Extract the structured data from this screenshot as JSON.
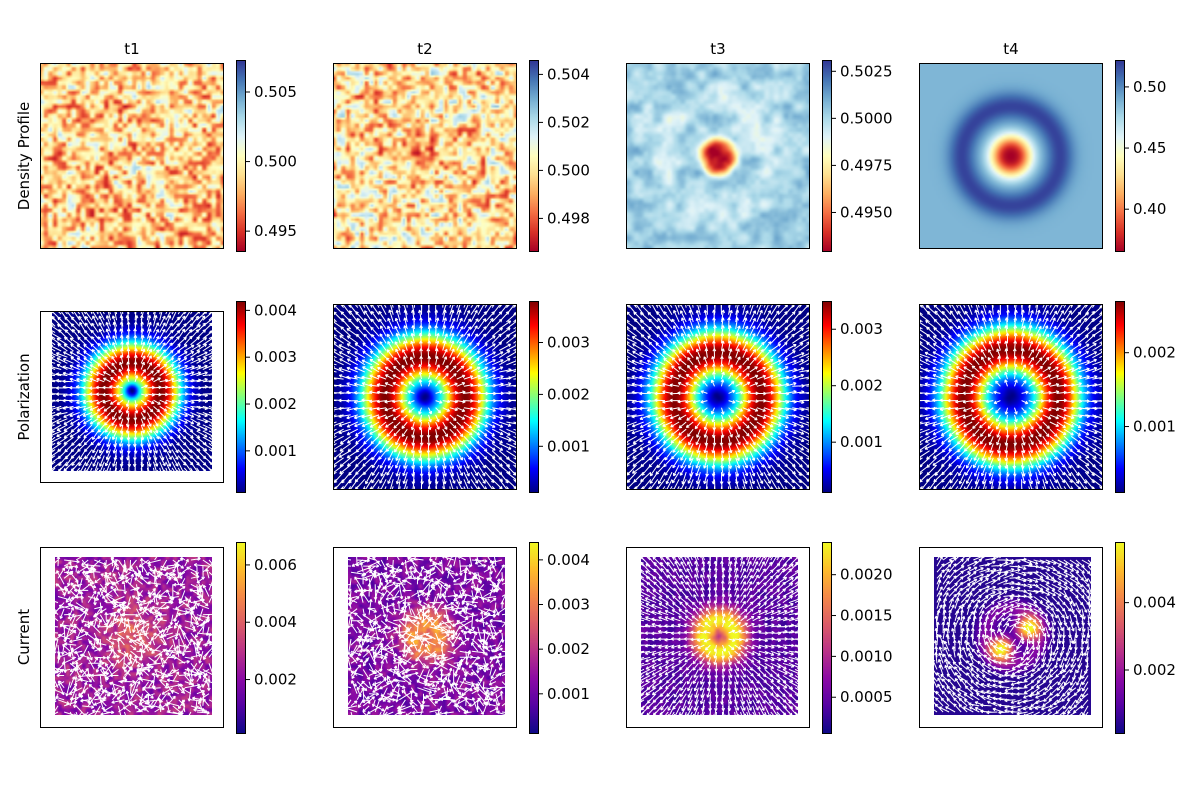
{
  "chart_data": {
    "type": "heatmap",
    "columns": [
      "t1",
      "t2",
      "t3",
      "t4"
    ],
    "row_labels": [
      "Density Profile",
      "Polarization",
      "Current"
    ],
    "panels": [
      [
        {
          "row": "Density Profile",
          "col": "t1",
          "colormap": "RdYlBu",
          "vmin": 0.4935,
          "vmax": 0.5073,
          "ticks": [
            "0.495",
            "0.500",
            "0.505"
          ],
          "tick_values": [
            0.495,
            0.5,
            0.505
          ],
          "pattern": "noise",
          "contrast": 0.25,
          "overlay": "none"
        },
        {
          "row": "Density Profile",
          "col": "t2",
          "colormap": "RdYlBu",
          "vmin": 0.4966,
          "vmax": 0.5046,
          "ticks": [
            "0.498",
            "0.500",
            "0.502",
            "0.504"
          ],
          "tick_values": [
            0.498,
            0.5,
            0.502,
            0.504
          ],
          "pattern": "noise_center_low",
          "contrast": 0.35,
          "overlay": "none"
        },
        {
          "row": "Density Profile",
          "col": "t3",
          "colormap": "RdYlBu",
          "vmin": 0.4929,
          "vmax": 0.5031,
          "ticks": [
            "0.4950",
            "0.4975",
            "0.5000",
            "0.5025"
          ],
          "tick_values": [
            0.495,
            0.4975,
            0.5,
            0.5025
          ],
          "pattern": "center_low_ring",
          "contrast": 0.0,
          "overlay": "none"
        },
        {
          "row": "Density Profile",
          "col": "t4",
          "colormap": "RdYlBu",
          "vmin": 0.365,
          "vmax": 0.522,
          "ticks": [
            "0.40",
            "0.45",
            "0.50"
          ],
          "tick_values": [
            0.4,
            0.45,
            0.5
          ],
          "pattern": "center_low_ring_smooth",
          "contrast": 0.0,
          "overlay": "none"
        }
      ],
      [
        {
          "row": "Polarization",
          "col": "t1",
          "colormap": "jet",
          "vmin": 0.0001,
          "vmax": 0.0042,
          "ticks": [
            "0.001",
            "0.002",
            "0.003",
            "0.004"
          ],
          "tick_values": [
            0.001,
            0.002,
            0.003,
            0.004
          ],
          "pattern": "ring",
          "ring_radius": 0.18,
          "ring_width": 0.2,
          "overlay": "radial_arrows"
        },
        {
          "row": "Polarization",
          "col": "t2",
          "colormap": "jet",
          "vmin": 0.0001,
          "vmax": 0.0038,
          "ticks": [
            "0.001",
            "0.002",
            "0.003"
          ],
          "tick_values": [
            0.001,
            0.002,
            0.003
          ],
          "pattern": "ring",
          "ring_radius": 0.22,
          "ring_width": 0.2,
          "overlay": "radial_arrows"
        },
        {
          "row": "Polarization",
          "col": "t3",
          "colormap": "jet",
          "vmin": 0.0001,
          "vmax": 0.0035,
          "ticks": [
            "0.001",
            "0.002",
            "0.003"
          ],
          "tick_values": [
            0.001,
            0.002,
            0.003
          ],
          "pattern": "ring",
          "ring_radius": 0.24,
          "ring_width": 0.2,
          "overlay": "radial_arrows"
        },
        {
          "row": "Polarization",
          "col": "t4",
          "colormap": "jet",
          "vmin": 0.0001,
          "vmax": 0.0027,
          "ticks": [
            "0.001",
            "0.002"
          ],
          "tick_values": [
            0.001,
            0.002
          ],
          "pattern": "ring",
          "ring_radius": 0.26,
          "ring_width": 0.2,
          "overlay": "radial_arrows"
        }
      ],
      [
        {
          "row": "Current",
          "col": "t1",
          "colormap": "plasma",
          "vmin": 0.0001,
          "vmax": 0.0068,
          "ticks": [
            "0.002",
            "0.004",
            "0.006"
          ],
          "tick_values": [
            0.002,
            0.004,
            0.006
          ],
          "pattern": "noise_blob",
          "overlay": "random_arrows"
        },
        {
          "row": "Current",
          "col": "t2",
          "colormap": "plasma",
          "vmin": 0.0001,
          "vmax": 0.0044,
          "ticks": [
            "0.001",
            "0.002",
            "0.003",
            "0.004"
          ],
          "tick_values": [
            0.001,
            0.002,
            0.003,
            0.004
          ],
          "pattern": "noise_ring",
          "overlay": "random_arrows"
        },
        {
          "row": "Current",
          "col": "t3",
          "colormap": "plasma",
          "vmin": 5e-05,
          "vmax": 0.0024,
          "ticks": [
            "0.0005",
            "0.0010",
            "0.0015",
            "0.0020"
          ],
          "tick_values": [
            0.0005,
            0.001,
            0.0015,
            0.002
          ],
          "pattern": "ring_bright",
          "overlay": "radial_arrows"
        },
        {
          "row": "Current",
          "col": "t4",
          "colormap": "plasma",
          "vmin": 0.0001,
          "vmax": 0.0058,
          "ticks": [
            "0.002",
            "0.004"
          ],
          "tick_values": [
            0.002,
            0.004
          ],
          "pattern": "two_lobes",
          "overlay": "swirl_arrows"
        }
      ]
    ]
  }
}
